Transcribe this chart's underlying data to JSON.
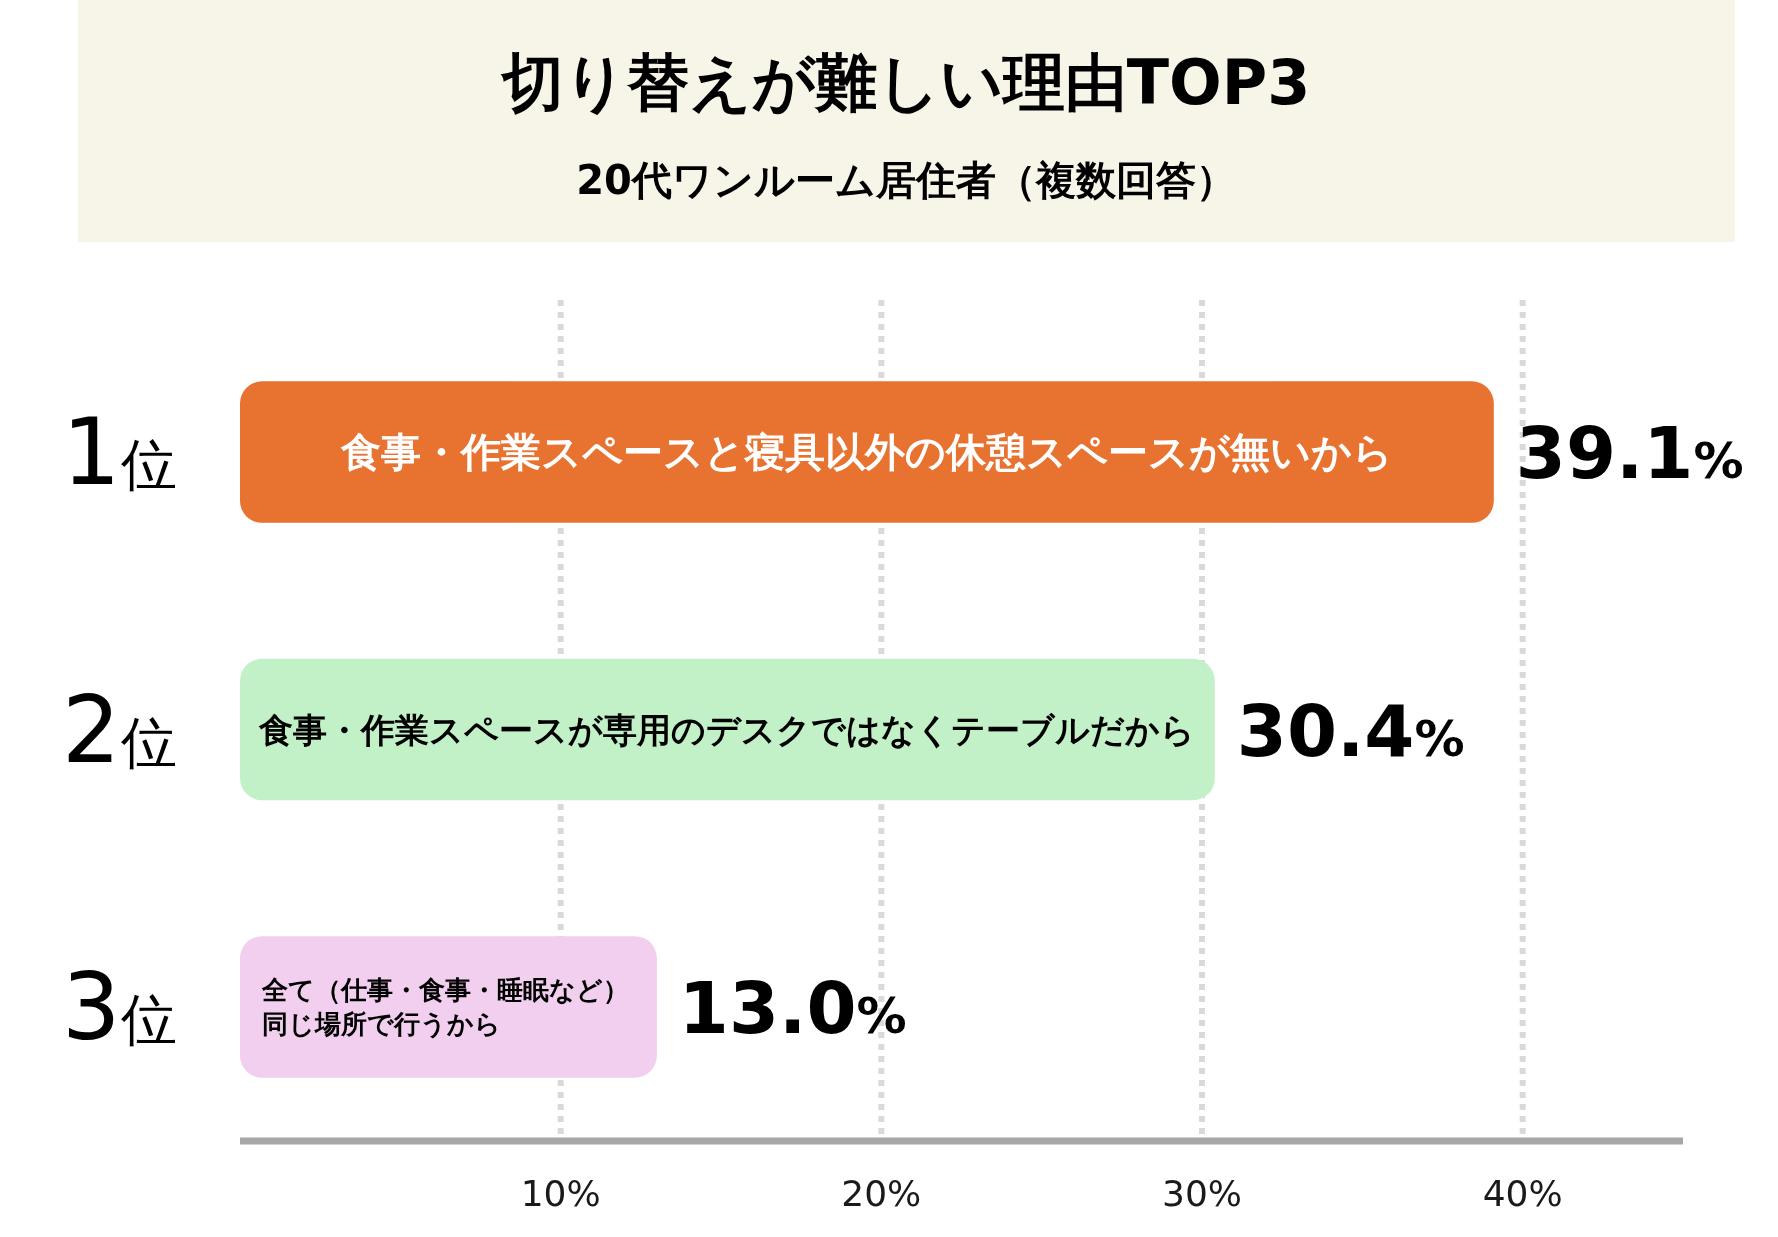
{
  "chart_data": {
    "type": "bar",
    "orientation": "horizontal",
    "title": "切り替えが難しい理由TOP3",
    "subtitle": "20代ワンルーム居住者（複数回答）",
    "categories": [
      "1位",
      "2位",
      "3位"
    ],
    "values": [
      39.1,
      30.4,
      13.0
    ],
    "colors": [
      "#e8722f",
      "#c2f0c7",
      "#f2cfee"
    ],
    "value_labels": [
      "39.1%",
      "30.4%",
      "13.0%"
    ],
    "xlim": [
      0,
      45
    ],
    "xticks": [
      {
        "value": 10,
        "label": "10%"
      },
      {
        "value": 20,
        "label": "20%"
      },
      {
        "value": 30,
        "label": "30%"
      },
      {
        "value": 40,
        "label": "40%"
      }
    ],
    "grid": "x",
    "annotations": [
      "食事・作業スペースと寝具以外の休憩スペースが無いから",
      "食事・作業スペースが専用のデスクではなくテーブルだから",
      "全て（仕事・食事・睡眠など）同じ場所で行うから"
    ]
  }
}
